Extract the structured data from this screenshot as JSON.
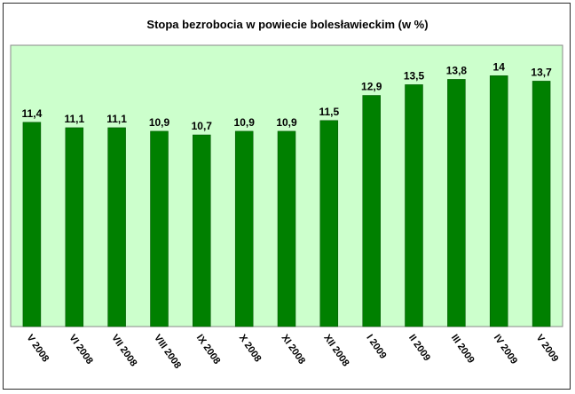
{
  "chart_data": {
    "type": "bar",
    "title": "Stopa bezrobocia w powiecie bolesławieckim (w %)",
    "xlabel": "",
    "ylabel": "",
    "ylim": [
      0,
      15.7
    ],
    "grid": false,
    "legend": "none",
    "categories": [
      "V 2008",
      "VI 2008",
      "VII 2008",
      "VIII 2008",
      "IX 2008",
      "X 2008",
      "XI 2008",
      "XII 2008",
      "I 2009",
      "II 2009",
      "III 2009",
      "IV 2009",
      "V 2009"
    ],
    "values": [
      11.4,
      11.1,
      11.1,
      10.9,
      10.7,
      10.9,
      10.9,
      11.5,
      12.9,
      13.5,
      13.8,
      14,
      13.7
    ],
    "value_labels": [
      "11,4",
      "11,1",
      "11,1",
      "10,9",
      "10,7",
      "10,9",
      "10,9",
      "11,5",
      "12,9",
      "13,5",
      "13,8",
      "14",
      "13,7"
    ],
    "colors": {
      "bar": "#008000",
      "bar_stroke": "#004d00",
      "plot_background": "#ccffcc",
      "plot_border": "#888888"
    }
  }
}
